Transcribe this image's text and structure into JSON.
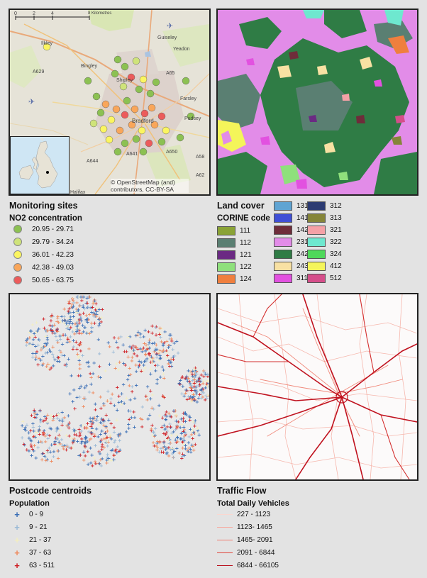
{
  "map1": {
    "scale_bar": {
      "ticks": [
        "0",
        "2",
        "4",
        "8 Kilometres"
      ]
    },
    "place_labels": [
      "Ilkley",
      "Guiseley",
      "Yeadon",
      "Bingley",
      "Shipley",
      "Farsley",
      "Pudsey",
      "Bradford"
    ],
    "road_labels": [
      "A629",
      "A65",
      "A650",
      "A641",
      "A644",
      "A58",
      "A62"
    ],
    "other_labels": [
      "Halifax"
    ],
    "attribution": "© OpenStreetMap (and) contributors, CC-BY-SA"
  },
  "monitoring": {
    "title": "Monitoring sites",
    "subtitle": "NO2 concentration",
    "classes": [
      {
        "label": "20.95 - 29.71",
        "color": "#8cc152"
      },
      {
        "label": "29.79 - 34.24",
        "color": "#cfe37a"
      },
      {
        "label": "36.01 - 42.23",
        "color": "#fbf560"
      },
      {
        "label": "42.38 - 49.03",
        "color": "#f9a65a"
      },
      {
        "label": "50.65 - 63.75",
        "color": "#ec5b5b"
      }
    ]
  },
  "landcover": {
    "title": "Land cover",
    "subtitle": "CORINE code",
    "col1": [
      {
        "code": "111",
        "color": "#8aa336"
      },
      {
        "code": "112",
        "color": "#5a7f72"
      },
      {
        "code": "121",
        "color": "#6b2a83"
      },
      {
        "code": "122",
        "color": "#8fe07c"
      },
      {
        "code": "124",
        "color": "#ef7f3e"
      }
    ],
    "col2": [
      {
        "code": "131",
        "color": "#5fa4d3"
      },
      {
        "code": "141",
        "color": "#3f4fd6"
      },
      {
        "code": "142",
        "color": "#6e2d3a"
      },
      {
        "code": "231",
        "color": "#e28ce8"
      },
      {
        "code": "242",
        "color": "#2f7c45"
      },
      {
        "code": "243",
        "color": "#f8e1a3"
      },
      {
        "code": "311",
        "color": "#e251e0"
      }
    ],
    "col3": [
      {
        "code": "312",
        "color": "#2c3b72"
      },
      {
        "code": "313",
        "color": "#858539"
      },
      {
        "code": "321",
        "color": "#f5a1a6"
      },
      {
        "code": "322",
        "color": "#6ee8cf"
      },
      {
        "code": "324",
        "color": "#4fd85a"
      },
      {
        "code": "412",
        "color": "#f4f55a"
      },
      {
        "code": "512",
        "color": "#d54e8a"
      }
    ]
  },
  "postcode": {
    "title": "Postcode centroids",
    "subtitle": "Population",
    "classes": [
      {
        "label": "0 - 9",
        "color": "#3b6fb6"
      },
      {
        "label": "9 - 21",
        "color": "#9bbad6"
      },
      {
        "label": "21 - 37",
        "color": "#f3eec0"
      },
      {
        "label": "37 - 63",
        "color": "#ef8a5e"
      },
      {
        "label": "63 - 511",
        "color": "#cf1f25"
      }
    ]
  },
  "traffic": {
    "title": "Traffic Flow",
    "subtitle": "Total Daily Vehicles",
    "classes": [
      {
        "label": "227 - 1123",
        "color": "#fbd7d0",
        "width": 1
      },
      {
        "label": "1123- 1465",
        "color": "#f6aaa0",
        "width": 1
      },
      {
        "label": "1465- 2091",
        "color": "#ef7a6e",
        "width": 1.2
      },
      {
        "label": "2091 - 6844",
        "color": "#e0453c",
        "width": 1.4
      },
      {
        "label": "6844 - 66105",
        "color": "#b80f1c",
        "width": 1.8
      }
    ]
  }
}
